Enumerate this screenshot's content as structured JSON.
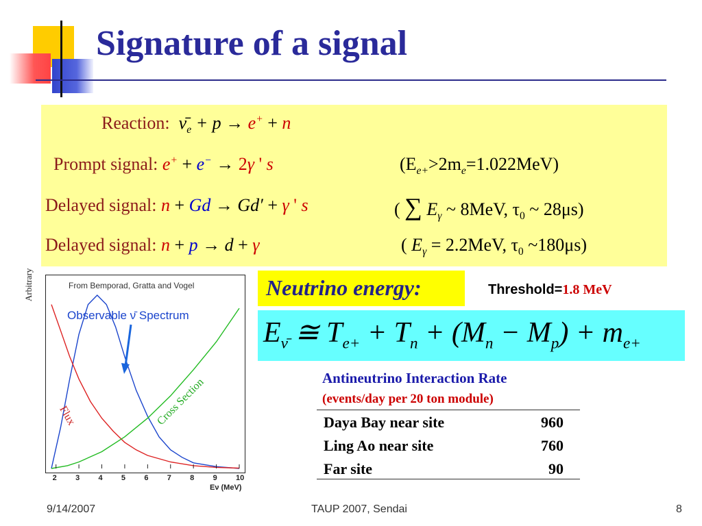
{
  "title": "Signature of a signal",
  "reactions": {
    "reaction_label": "Reaction:",
    "prompt_label": "Prompt signal:",
    "delayed_label_1": "Delayed signal:",
    "delayed_label_2": "Delayed signal:",
    "prompt_condition": "(E",
    "prompt_condition_tail": ">2m",
    "prompt_value": "=1.022MeV)",
    "delayed1_cond": "~ 8MeV,  τ",
    "delayed1_tail": "~ 28μs)",
    "delayed2_cond": "= 2.2MeV,  τ",
    "delayed2_tail": "~180μs)"
  },
  "plot": {
    "source": "From Bemporad, Gratta and Vogel",
    "y_label": "Arbitrary",
    "spectrum_label": "Observable ν̄  Spectrum",
    "flux_label": "Flux",
    "cross_section_label": "Cross Section",
    "x_label": "Eν (MeV)",
    "x_ticks": [
      "2",
      "3",
      "4",
      "5",
      "6",
      "7",
      "8",
      "9",
      "10"
    ]
  },
  "chart_data": {
    "type": "line",
    "x_range": [
      1.8,
      10
    ],
    "series": [
      {
        "name": "Observable ν̄  Spectrum",
        "color": "#1a44cc",
        "x": [
          1.8,
          2.2,
          2.6,
          3.0,
          3.4,
          3.8,
          4.2,
          4.6,
          5.0,
          5.5,
          6.0,
          6.5,
          7.0,
          7.5,
          8.0,
          9.0,
          10.0
        ],
        "y": [
          0.0,
          0.22,
          0.48,
          0.72,
          0.88,
          0.93,
          0.88,
          0.76,
          0.6,
          0.42,
          0.28,
          0.17,
          0.1,
          0.06,
          0.03,
          0.01,
          0.0
        ]
      },
      {
        "name": "Flux",
        "color": "#dd2222",
        "x": [
          1.8,
          2.2,
          2.6,
          3.0,
          3.5,
          4.0,
          4.5,
          5.0,
          5.5,
          6.0,
          7.0,
          8.0,
          9.0,
          10.0
        ],
        "y": [
          0.88,
          0.74,
          0.6,
          0.48,
          0.36,
          0.27,
          0.2,
          0.14,
          0.1,
          0.07,
          0.035,
          0.015,
          0.006,
          0.002
        ]
      },
      {
        "name": "Cross Section",
        "color": "#22bb22",
        "x": [
          1.8,
          2.5,
          3.0,
          4.0,
          5.0,
          6.0,
          7.0,
          8.0,
          9.0,
          10.0
        ],
        "y": [
          0.0,
          0.015,
          0.035,
          0.09,
          0.17,
          0.27,
          0.39,
          0.53,
          0.68,
          0.86
        ]
      }
    ]
  },
  "neutrino": {
    "label": "Neutrino energy:",
    "threshold_label": "Threshold=",
    "threshold_value": "1.8 MeV"
  },
  "table": {
    "title": "Antineutrino Interaction Rate",
    "subtitle": "(events/day per 20 ton module)",
    "rows": [
      {
        "site": "Daya Bay near site",
        "value": "960"
      },
      {
        "site": "Ling Ao near site",
        "value": "760"
      },
      {
        "site": "Far site",
        "value": "90"
      }
    ]
  },
  "footer": {
    "date": "9/14/2007",
    "center": "TAUP 2007, Sendai",
    "page": "8"
  },
  "colors": {
    "title": "#2a2a9a",
    "reaction_box": "#ffff99",
    "neutrino_box": "#ffff00",
    "formula_box": "#66ffff",
    "table_title": "#1a1aaa",
    "table_subtitle": "#cc0000"
  }
}
